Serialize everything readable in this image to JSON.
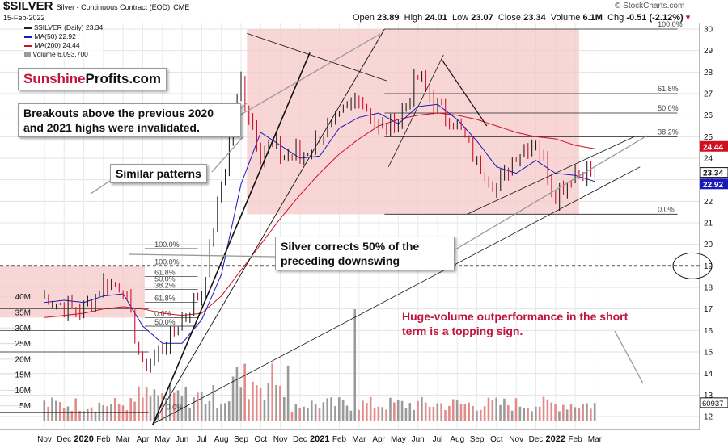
{
  "header": {
    "symbol": "$SILVER",
    "description": "Silver - Continuous Contract (EOD)",
    "exchange": "CME",
    "date": "15-Feb-2022",
    "open_label": "Open",
    "open": "23.89",
    "high_label": "High",
    "high": "24.01",
    "low_label": "Low",
    "low": "23.07",
    "close_label": "Close",
    "close": "23.34",
    "volume_label": "Volume",
    "volume": "6.1M",
    "chg_label": "Chg",
    "chg": "-0.51 (-2.12%)",
    "copyright": "© StockCharts.com"
  },
  "legend": {
    "price": "$SILVER (Daily) 23.34",
    "ma50": "MA(50) 22.92",
    "ma200": "MA(200) 24.44",
    "volume": "Volume 6,093,700"
  },
  "brand": {
    "part1": "Sunshine",
    "part2": "Profits.com"
  },
  "annotations": {
    "breakouts": "Breakouts above the previous 2020 and 2021 highs were invalidated.",
    "similar": "Similar patterns",
    "corrects": "Silver corrects 50% of the preceding downswing",
    "volume_note": "Huge-volume outperformance in the short term is a topping sign."
  },
  "fib_labels": {
    "main": [
      "100.0%",
      "61.8%",
      "50.0%",
      "38.2%",
      "0.0%"
    ],
    "left_box": [
      "100.0%",
      "100.0%",
      "61.8%",
      "50.0%",
      "38.2%",
      "61.8%",
      "0.0%",
      "50.0%",
      "0.0%"
    ],
    "low_box": [
      "38.2%",
      "0.0%"
    ]
  },
  "colors": {
    "up": "#222222",
    "down": "#d0102c",
    "ma50": "#1a1ab8",
    "ma200": "#d01020",
    "zone": "#f5c8c8",
    "vol_up": "#9a9a9a",
    "vol_down": "#e38b8b"
  },
  "chart_data": {
    "type": "line",
    "title": "$SILVER Silver - Continuous Contract (EOD) CME",
    "x": [
      "2019-10",
      "2019-11",
      "2019-12",
      "2020-01",
      "2020-02",
      "2020-03",
      "2020-04",
      "2020-05",
      "2020-06",
      "2020-07",
      "2020-08",
      "2020-09",
      "2020-10",
      "2020-11",
      "2020-12",
      "2021-01",
      "2021-02",
      "2021-03",
      "2021-04",
      "2021-05",
      "2021-06",
      "2021-07",
      "2021-08",
      "2021-09",
      "2021-10",
      "2021-11",
      "2021-12",
      "2022-01",
      "2022-02"
    ],
    "series": [
      {
        "name": "$SILVER (Daily) 23.34",
        "values": [
          17.6,
          17.1,
          16.9,
          18.2,
          18.0,
          14.2,
          15.2,
          16.5,
          17.8,
          22.8,
          27.5,
          24.5,
          24.2,
          24.0,
          25.0,
          25.8,
          27.0,
          25.3,
          25.8,
          27.8,
          26.3,
          25.6,
          23.8,
          22.6,
          24.2,
          24.8,
          22.3,
          23.4,
          23.34
        ]
      },
      {
        "name": "MA(50) 22.92",
        "values": [
          17.3,
          17.4,
          17.3,
          17.6,
          17.7,
          16.2,
          15.4,
          15.4,
          16.5,
          18.6,
          22.8,
          25.2,
          24.6,
          24.0,
          24.1,
          25.4,
          25.9,
          26.1,
          25.6,
          26.4,
          26.5,
          25.8,
          24.8,
          23.6,
          23.3,
          23.9,
          23.3,
          23.2,
          22.92
        ]
      },
      {
        "name": "MA(200) 24.44",
        "values": [
          16.6,
          16.7,
          16.8,
          17.0,
          17.1,
          17.0,
          16.8,
          16.7,
          16.8,
          17.6,
          18.8,
          20.0,
          21.2,
          22.3,
          23.3,
          24.2,
          24.9,
          25.5,
          25.8,
          26.0,
          26.1,
          26.0,
          25.8,
          25.5,
          25.2,
          25.0,
          24.9,
          24.6,
          24.44
        ]
      }
    ],
    "volume_series": {
      "name": "Volume 6,093,700",
      "ylim": [
        0,
        42000000
      ]
    },
    "price_axis": {
      "min": 11.4,
      "max": 30.3,
      "ticks": [
        12,
        13,
        14,
        15,
        16,
        17,
        18,
        19,
        20,
        21,
        22,
        23,
        24,
        25,
        26,
        27,
        28,
        29,
        30
      ]
    },
    "volume_axis": {
      "ticks": [
        "5M",
        "10M",
        "15M",
        "20M",
        "25M",
        "30M",
        "35M",
        "40M"
      ]
    },
    "x_ticks": [
      "Nov",
      "Dec",
      "2020",
      "Feb",
      "Mar",
      "Apr",
      "May",
      "Jun",
      "Jul",
      "Aug",
      "Sep",
      "Oct",
      "Nov",
      "Dec",
      "2021",
      "Feb",
      "Mar",
      "Apr",
      "May",
      "Jun",
      "Jul",
      "Aug",
      "Sep",
      "Oct",
      "Nov",
      "Dec",
      "2022",
      "Feb",
      "Mar"
    ],
    "price_badges": [
      "24.44",
      "23.34",
      "22.92"
    ],
    "volume_badge": "60937",
    "fib_levels_2021": [
      {
        "label": "100.0%",
        "price": 30.0
      },
      {
        "label": "61.8%",
        "price": 27.0
      },
      {
        "label": "50.0%",
        "price": 26.1
      },
      {
        "label": "38.2%",
        "price": 25.0
      },
      {
        "label": "0.0%",
        "price": 21.4
      }
    ],
    "dashed_level": 19.0,
    "grid": true
  }
}
